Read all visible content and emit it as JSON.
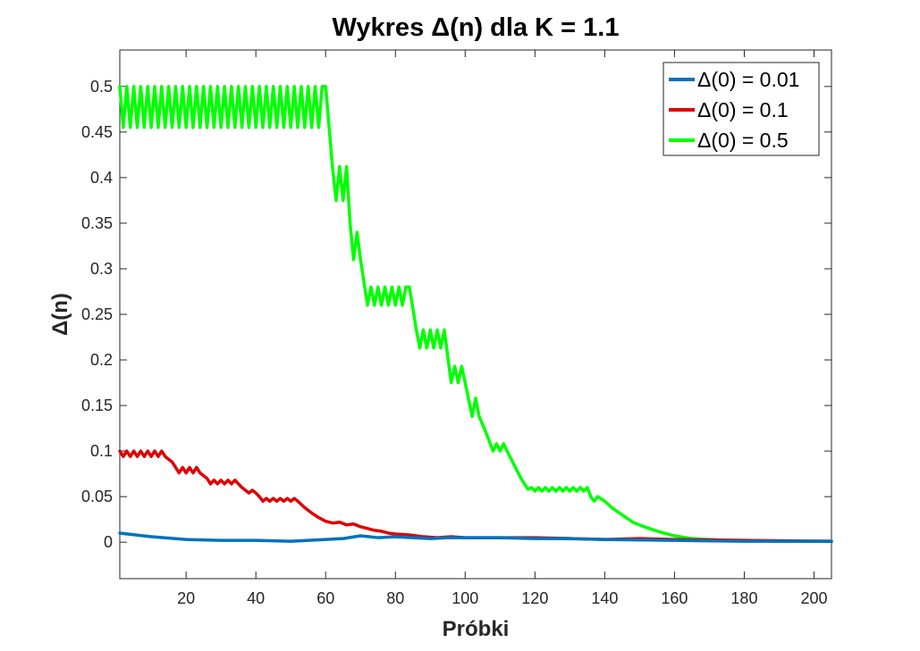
{
  "chart_data": {
    "type": "line",
    "title": "Wykres Δ(n) dla K = 1.1",
    "xlabel": "Próbki",
    "ylabel": "Δ(n)",
    "xlim": [
      1,
      205
    ],
    "ylim": [
      -0.04,
      0.54
    ],
    "xticks": [
      20,
      40,
      60,
      80,
      100,
      120,
      140,
      160,
      180,
      200
    ],
    "yticks": [
      0,
      0.05,
      0.1,
      0.15,
      0.2,
      0.25,
      0.3,
      0.35,
      0.4,
      0.45,
      0.5
    ],
    "ytick_labels": [
      "0",
      "0.05",
      "0.1",
      "0.15",
      "0.2",
      "0.25",
      "0.3",
      "0.35",
      "0.4",
      "0.45",
      "0.5"
    ],
    "grid": false,
    "legend_position": "top-right",
    "series": [
      {
        "name": "Δ(0) = 0.01",
        "color": "#0072BD",
        "x": [
          1,
          10,
          20,
          30,
          40,
          50,
          60,
          65,
          70,
          75,
          80,
          85,
          90,
          95,
          100,
          110,
          120,
          130,
          140,
          160,
          180,
          205
        ],
        "y": [
          0.01,
          0.006,
          0.003,
          0.002,
          0.002,
          0.001,
          0.003,
          0.004,
          0.007,
          0.005,
          0.006,
          0.005,
          0.004,
          0.005,
          0.005,
          0.005,
          0.004,
          0.004,
          0.003,
          0.002,
          0.001,
          0.001
        ]
      },
      {
        "name": "Δ(0) = 0.1",
        "color": "#E00000",
        "x": [
          1,
          2,
          3,
          4,
          5,
          6,
          7,
          8,
          9,
          10,
          11,
          12,
          13,
          14,
          16,
          17,
          18,
          19,
          20,
          21,
          22,
          23,
          24,
          26,
          27,
          28,
          29,
          30,
          31,
          32,
          33,
          34,
          36,
          38,
          39,
          40,
          41,
          42,
          43,
          44,
          45,
          46,
          47,
          48,
          49,
          50,
          51,
          52,
          54,
          56,
          58,
          60,
          62,
          64,
          66,
          68,
          70,
          72,
          74,
          76,
          78,
          80,
          84,
          88,
          92,
          96,
          100,
          110,
          120,
          130,
          140,
          150,
          160,
          180,
          205
        ],
        "y": [
          0.1,
          0.094,
          0.1,
          0.094,
          0.1,
          0.094,
          0.1,
          0.094,
          0.1,
          0.094,
          0.1,
          0.094,
          0.1,
          0.094,
          0.088,
          0.082,
          0.076,
          0.082,
          0.076,
          0.082,
          0.076,
          0.082,
          0.076,
          0.07,
          0.064,
          0.068,
          0.064,
          0.068,
          0.064,
          0.068,
          0.064,
          0.068,
          0.06,
          0.054,
          0.057,
          0.054,
          0.05,
          0.045,
          0.048,
          0.045,
          0.048,
          0.045,
          0.048,
          0.045,
          0.048,
          0.045,
          0.048,
          0.045,
          0.038,
          0.032,
          0.027,
          0.023,
          0.021,
          0.022,
          0.019,
          0.02,
          0.017,
          0.015,
          0.013,
          0.012,
          0.01,
          0.009,
          0.008,
          0.006,
          0.005,
          0.006,
          0.005,
          0.005,
          0.005,
          0.004,
          0.003,
          0.004,
          0.003,
          0.002,
          0.001
        ]
      },
      {
        "name": "Δ(0) = 0.5",
        "color": "#00FF00",
        "x": [
          1,
          2,
          3,
          4,
          5,
          6,
          7,
          8,
          9,
          10,
          11,
          12,
          13,
          14,
          15,
          16,
          17,
          18,
          19,
          20,
          21,
          22,
          23,
          24,
          25,
          26,
          27,
          28,
          29,
          30,
          31,
          32,
          33,
          34,
          35,
          36,
          37,
          38,
          39,
          40,
          41,
          42,
          43,
          44,
          45,
          46,
          47,
          48,
          49,
          50,
          51,
          52,
          53,
          54,
          55,
          56,
          57,
          58,
          59,
          60,
          62,
          63,
          64,
          65,
          66,
          67,
          68,
          69,
          70,
          72,
          73,
          74,
          75,
          76,
          77,
          78,
          79,
          80,
          81,
          82,
          83,
          84,
          86,
          87,
          88,
          89,
          90,
          91,
          92,
          93,
          94,
          96,
          97,
          98,
          99,
          100,
          102,
          103,
          104,
          106,
          108,
          109,
          110,
          111,
          112,
          114,
          116,
          118,
          119,
          120,
          121,
          122,
          123,
          124,
          125,
          126,
          127,
          128,
          129,
          130,
          131,
          132,
          133,
          134,
          135,
          136,
          137,
          138,
          140,
          142,
          145,
          148,
          152,
          156,
          160,
          165,
          170,
          175,
          180,
          190,
          205
        ],
        "y": [
          0.5,
          0.455,
          0.5,
          0.455,
          0.5,
          0.455,
          0.5,
          0.455,
          0.5,
          0.455,
          0.5,
          0.455,
          0.5,
          0.455,
          0.5,
          0.455,
          0.5,
          0.455,
          0.5,
          0.455,
          0.5,
          0.455,
          0.5,
          0.455,
          0.5,
          0.455,
          0.5,
          0.455,
          0.5,
          0.455,
          0.5,
          0.455,
          0.5,
          0.455,
          0.5,
          0.455,
          0.5,
          0.455,
          0.5,
          0.455,
          0.5,
          0.455,
          0.5,
          0.455,
          0.5,
          0.455,
          0.5,
          0.455,
          0.5,
          0.455,
          0.5,
          0.455,
          0.5,
          0.455,
          0.5,
          0.455,
          0.5,
          0.455,
          0.5,
          0.5,
          0.41,
          0.375,
          0.412,
          0.375,
          0.412,
          0.35,
          0.31,
          0.34,
          0.31,
          0.26,
          0.28,
          0.26,
          0.28,
          0.26,
          0.28,
          0.26,
          0.28,
          0.26,
          0.28,
          0.26,
          0.28,
          0.28,
          0.233,
          0.213,
          0.233,
          0.213,
          0.233,
          0.213,
          0.233,
          0.213,
          0.233,
          0.175,
          0.193,
          0.175,
          0.193,
          0.175,
          0.138,
          0.158,
          0.138,
          0.12,
          0.1,
          0.108,
          0.1,
          0.108,
          0.1,
          0.085,
          0.07,
          0.058,
          0.06,
          0.056,
          0.06,
          0.056,
          0.06,
          0.056,
          0.06,
          0.056,
          0.06,
          0.056,
          0.06,
          0.056,
          0.06,
          0.056,
          0.06,
          0.056,
          0.06,
          0.05,
          0.045,
          0.05,
          0.045,
          0.038,
          0.03,
          0.022,
          0.016,
          0.011,
          0.007,
          0.004,
          0.003,
          0.002,
          0.002,
          0.001,
          0.001
        ]
      }
    ]
  }
}
